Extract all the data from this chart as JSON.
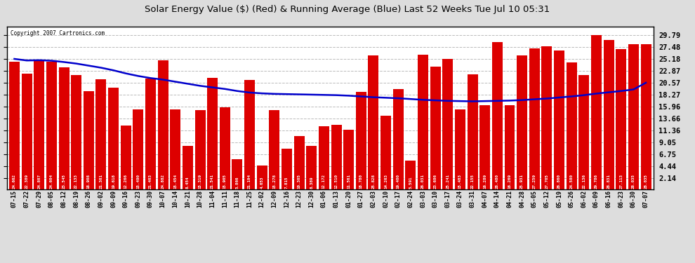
{
  "title": "Solar Energy Value ($) (Red) & Running Average (Blue) Last 52 Weeks Tue Jul 10 05:31",
  "copyright": "Copyright 2007 Cartronics.com",
  "bar_color": "#dd0000",
  "line_color": "#0000cc",
  "bg_color": "#dddddd",
  "plot_bg_color": "#ffffff",
  "grid_color": "#aaaaaa",
  "text_color": "#000000",
  "categories": [
    "07-15",
    "07-22",
    "07-29",
    "08-05",
    "08-12",
    "08-19",
    "08-26",
    "09-02",
    "09-09",
    "09-16",
    "09-23",
    "09-30",
    "10-07",
    "10-14",
    "10-21",
    "10-28",
    "11-04",
    "11-11",
    "11-18",
    "11-25",
    "12-02",
    "12-09",
    "12-16",
    "12-23",
    "12-30",
    "01-06",
    "01-13",
    "01-20",
    "01-27",
    "02-03",
    "02-10",
    "02-17",
    "02-24",
    "03-03",
    "03-10",
    "03-17",
    "03-24",
    "03-31",
    "04-07",
    "04-14",
    "04-21",
    "04-28",
    "05-05",
    "05-12",
    "05-19",
    "05-26",
    "06-02",
    "06-09",
    "06-16",
    "06-23",
    "06-30",
    "07-07"
  ],
  "bar_values": [
    24.662,
    22.389,
    24.807,
    24.604,
    23.545,
    22.133,
    18.908,
    21.301,
    19.618,
    12.266,
    15.49,
    21.403,
    24.882,
    15.454,
    8.454,
    15.319,
    21.541,
    15.905,
    5.866,
    21.194,
    4.653,
    15.278,
    7.815,
    10.305,
    8.389,
    12.172,
    12.51,
    11.561,
    18.78,
    25.828,
    14.263,
    19.4,
    5.591,
    26.031,
    23.686,
    25.241,
    15.483,
    22.155,
    16.289,
    28.48,
    16.269,
    25.931,
    27.259,
    27.705,
    26.86,
    24.58,
    22.136,
    29.786,
    28.831,
    27.113,
    28.035,
    28.035
  ],
  "avg_values": [
    25.2,
    24.9,
    24.95,
    24.85,
    24.6,
    24.3,
    23.9,
    23.5,
    23.0,
    22.4,
    21.9,
    21.5,
    21.2,
    20.8,
    20.4,
    20.0,
    19.7,
    19.4,
    19.0,
    18.7,
    18.55,
    18.45,
    18.4,
    18.35,
    18.3,
    18.25,
    18.2,
    18.1,
    17.95,
    17.8,
    17.7,
    17.6,
    17.45,
    17.3,
    17.2,
    17.1,
    17.05,
    17.0,
    17.05,
    17.1,
    17.15,
    17.25,
    17.4,
    17.55,
    17.75,
    17.95,
    18.2,
    18.5,
    18.75,
    19.0,
    19.3,
    20.6
  ],
  "ylim": [
    0,
    31.5
  ],
  "yticks": [
    2.14,
    4.44,
    6.75,
    9.05,
    11.36,
    13.66,
    15.96,
    18.27,
    20.57,
    22.87,
    25.18,
    27.48,
    29.79
  ]
}
